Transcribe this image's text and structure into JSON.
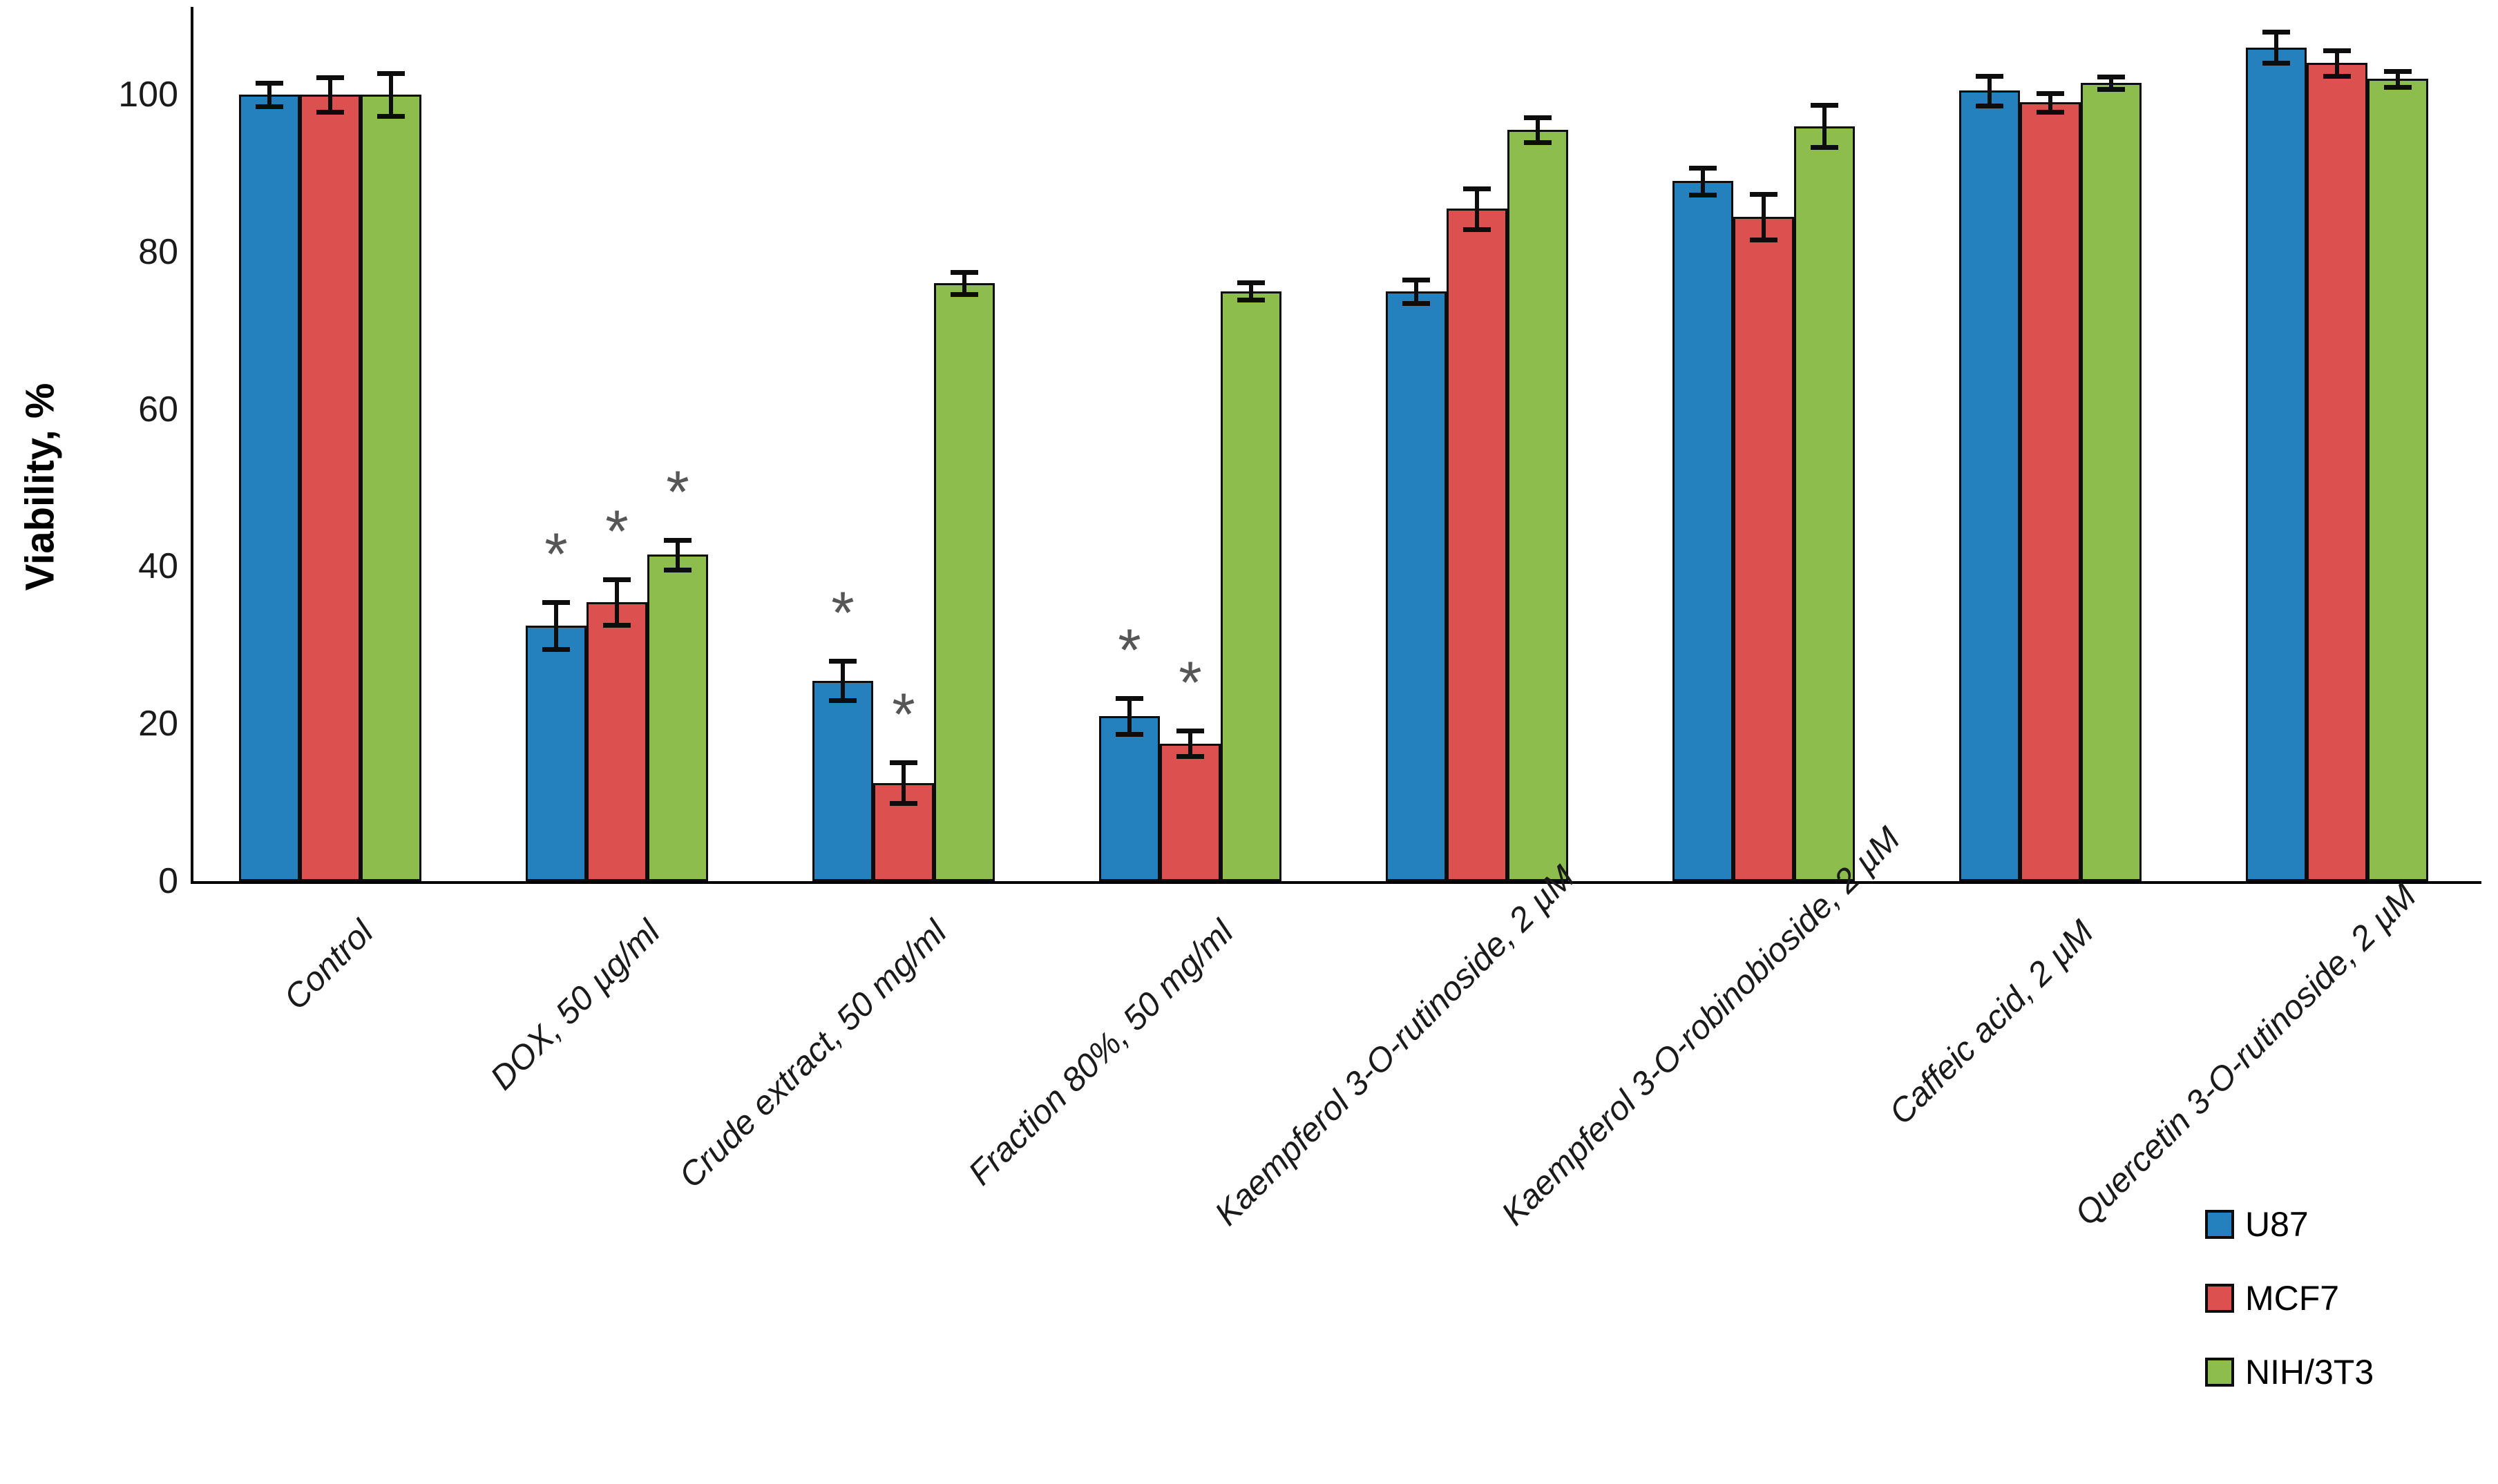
{
  "chart_data": {
    "type": "bar",
    "title": "",
    "xlabel": "",
    "ylabel": "Viability, %",
    "ylim": [
      0,
      111
    ],
    "yticks": [
      0,
      20,
      40,
      60,
      80,
      100
    ],
    "grid": false,
    "bar_outline_color": "#0d0d0d",
    "error_bars": true,
    "legend_position": "bottom-right",
    "categories": [
      "Control",
      "DOX, 50 µg/ml",
      "Crude extract, 50 mg/ml",
      "Fraction 80%, 50 mg/ml",
      "Kaempferol 3-O-rutinoside, 2 µM",
      "Kaempferol 3-O-robinobioside, 2 µM",
      "Caffeic acid, 2 µM",
      "Quercetin 3-O-rutinoside, 2 µM"
    ],
    "series": [
      {
        "name": "U87",
        "color": "#2581BE",
        "values": [
          100,
          32.5,
          25.5,
          21,
          75,
          89,
          100.5,
          106
        ],
        "errors": [
          1.5,
          3.0,
          2.5,
          2.3,
          1.5,
          1.7,
          1.9,
          2.0
        ]
      },
      {
        "name": "MCF7",
        "color": "#DC504F",
        "values": [
          100,
          35.5,
          12.5,
          17.5,
          85.5,
          84.5,
          99,
          104
        ],
        "errors": [
          2.2,
          2.9,
          2.6,
          1.6,
          2.6,
          2.9,
          1.2,
          1.6
        ]
      },
      {
        "name": "NIH/3T3",
        "color": "#8CBD4D",
        "values": [
          100,
          41.5,
          76,
          75,
          95.5,
          96,
          101.5,
          102
        ],
        "errors": [
          2.7,
          1.9,
          1.4,
          1.1,
          1.6,
          2.7,
          0.8,
          1.0
        ]
      }
    ],
    "significance": {
      "symbol": "*",
      "color": "#565656",
      "marks": [
        {
          "category_index": 1,
          "series_indexes": [
            0,
            1,
            2
          ]
        },
        {
          "category_index": 2,
          "series_indexes": [
            0,
            1
          ]
        },
        {
          "category_index": 3,
          "series_indexes": [
            0,
            1
          ]
        }
      ]
    }
  },
  "legend": {
    "items": [
      {
        "label": "U87",
        "color": "#2581BE"
      },
      {
        "label": "MCF7",
        "color": "#DC504F"
      },
      {
        "label": "NIH/3T3",
        "color": "#8CBD4D"
      }
    ]
  }
}
